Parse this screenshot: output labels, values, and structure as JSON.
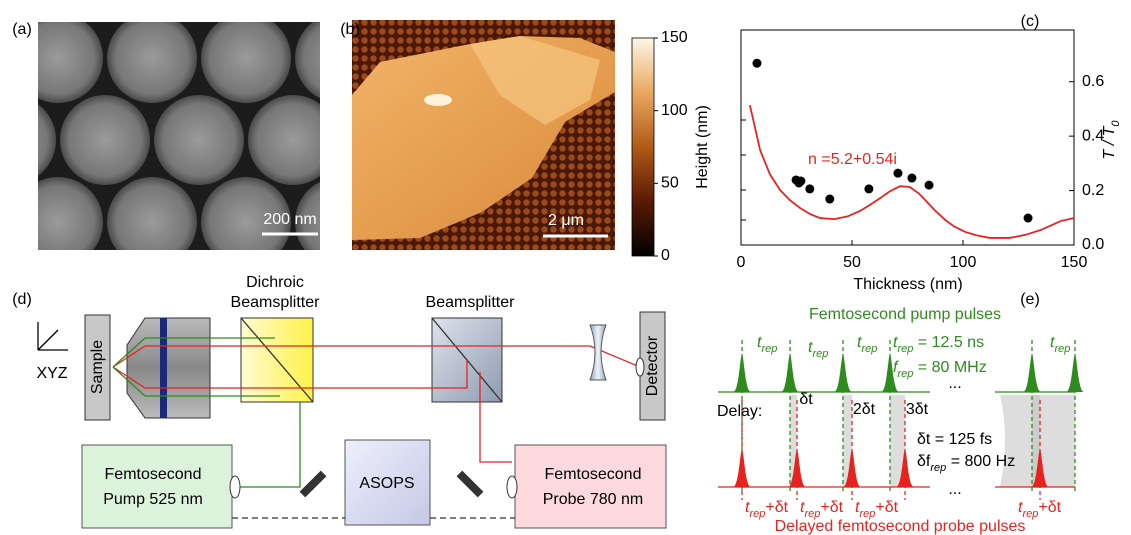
{
  "panel_labels": [
    "(a)",
    "(b)",
    "(c)",
    "(d)",
    "(e)"
  ],
  "panel_a": {
    "scale_bar": "200 nm"
  },
  "panel_b": {
    "scale_bar": "2 μm",
    "colorbar": {
      "label": "Height (nm)",
      "lim": [
        0,
        150
      ],
      "ticks": [
        0,
        50,
        100,
        150
      ]
    }
  },
  "chart_data": {
    "type": "scatter",
    "x_label": "Thickness (nm)",
    "y_label": {
      "main": "T / T",
      "sub": "0"
    },
    "annotation": "n =5.2+0.54i",
    "xlim": [
      0,
      150
    ],
    "xticks": [
      0,
      50,
      100,
      150
    ],
    "ylim": [
      0,
      0.79
    ],
    "yticks": [
      {
        "value": 0,
        "label": "0.0"
      },
      0.2,
      0.4,
      0.6
    ],
    "series": [
      {
        "mode": "markers",
        "color": "#000000",
        "x": [
          7.2,
          24.8,
          26.1,
          27,
          31,
          40,
          57.6,
          70.7,
          77,
          84.7,
          129.3
        ],
        "values": [
          0.668,
          0.239,
          0.228,
          0.235,
          0.206,
          0.169,
          0.206,
          0.264,
          0.246,
          0.22,
          0.099
        ]
      },
      {
        "mode": "line",
        "color": "#e8231f",
        "x": [
          4,
          8.6,
          13,
          17.6,
          22,
          26.6,
          31,
          35.6,
          42,
          48,
          53.6,
          58,
          62.6,
          67,
          71.6,
          76,
          80,
          83,
          87,
          92,
          96,
          101,
          106,
          112,
          121,
          128,
          135,
          144,
          150
        ],
        "values": [
          0.514,
          0.349,
          0.26,
          0.202,
          0.165,
          0.136,
          0.114,
          0.099,
          0.095,
          0.105,
          0.125,
          0.147,
          0.172,
          0.197,
          0.216,
          0.213,
          0.19,
          0.165,
          0.13,
          0.092,
          0.068,
          0.048,
          0.036,
          0.026,
          0.026,
          0.037,
          0.055,
          0.088,
          0.099
        ]
      }
    ]
  },
  "panel_d": {
    "sample": "Sample",
    "xyz": "XYZ",
    "dichroic": [
      "Dichroic",
      "Beamsplitter"
    ],
    "beamsplitter": "Beamsplitter",
    "detector": "Detector",
    "pump": [
      "Femtosecond",
      "Pump 525 nm"
    ],
    "asops": "ASOPS",
    "probe": [
      "Femtosecond",
      "Probe 780 nm"
    ]
  },
  "panel_e": {
    "pump_title": "Femtosecond pump pulses",
    "probe_title": "Delayed femtosecond probe pulses",
    "t_rep": {
      "t": "t",
      "sub": "rep"
    },
    "trep_eq": {
      "t": "t",
      "sub": "rep",
      "rest": " = 12.5 ns"
    },
    "frep_eq": {
      "f": "f",
      "sub": "rep",
      "rest": " = 80 MHz"
    },
    "delay": "Delay:",
    "delays": [
      "δt",
      "2δt",
      "3δt"
    ],
    "dt_eq": "δt = 125 fs",
    "dfrep_eq": {
      "pre": "δf",
      "sub": "rep",
      "rest": " = 800 Hz"
    },
    "ellipsis": "...",
    "probe_label": {
      "t": "t",
      "sub": "rep",
      "rest": "+δt"
    }
  }
}
